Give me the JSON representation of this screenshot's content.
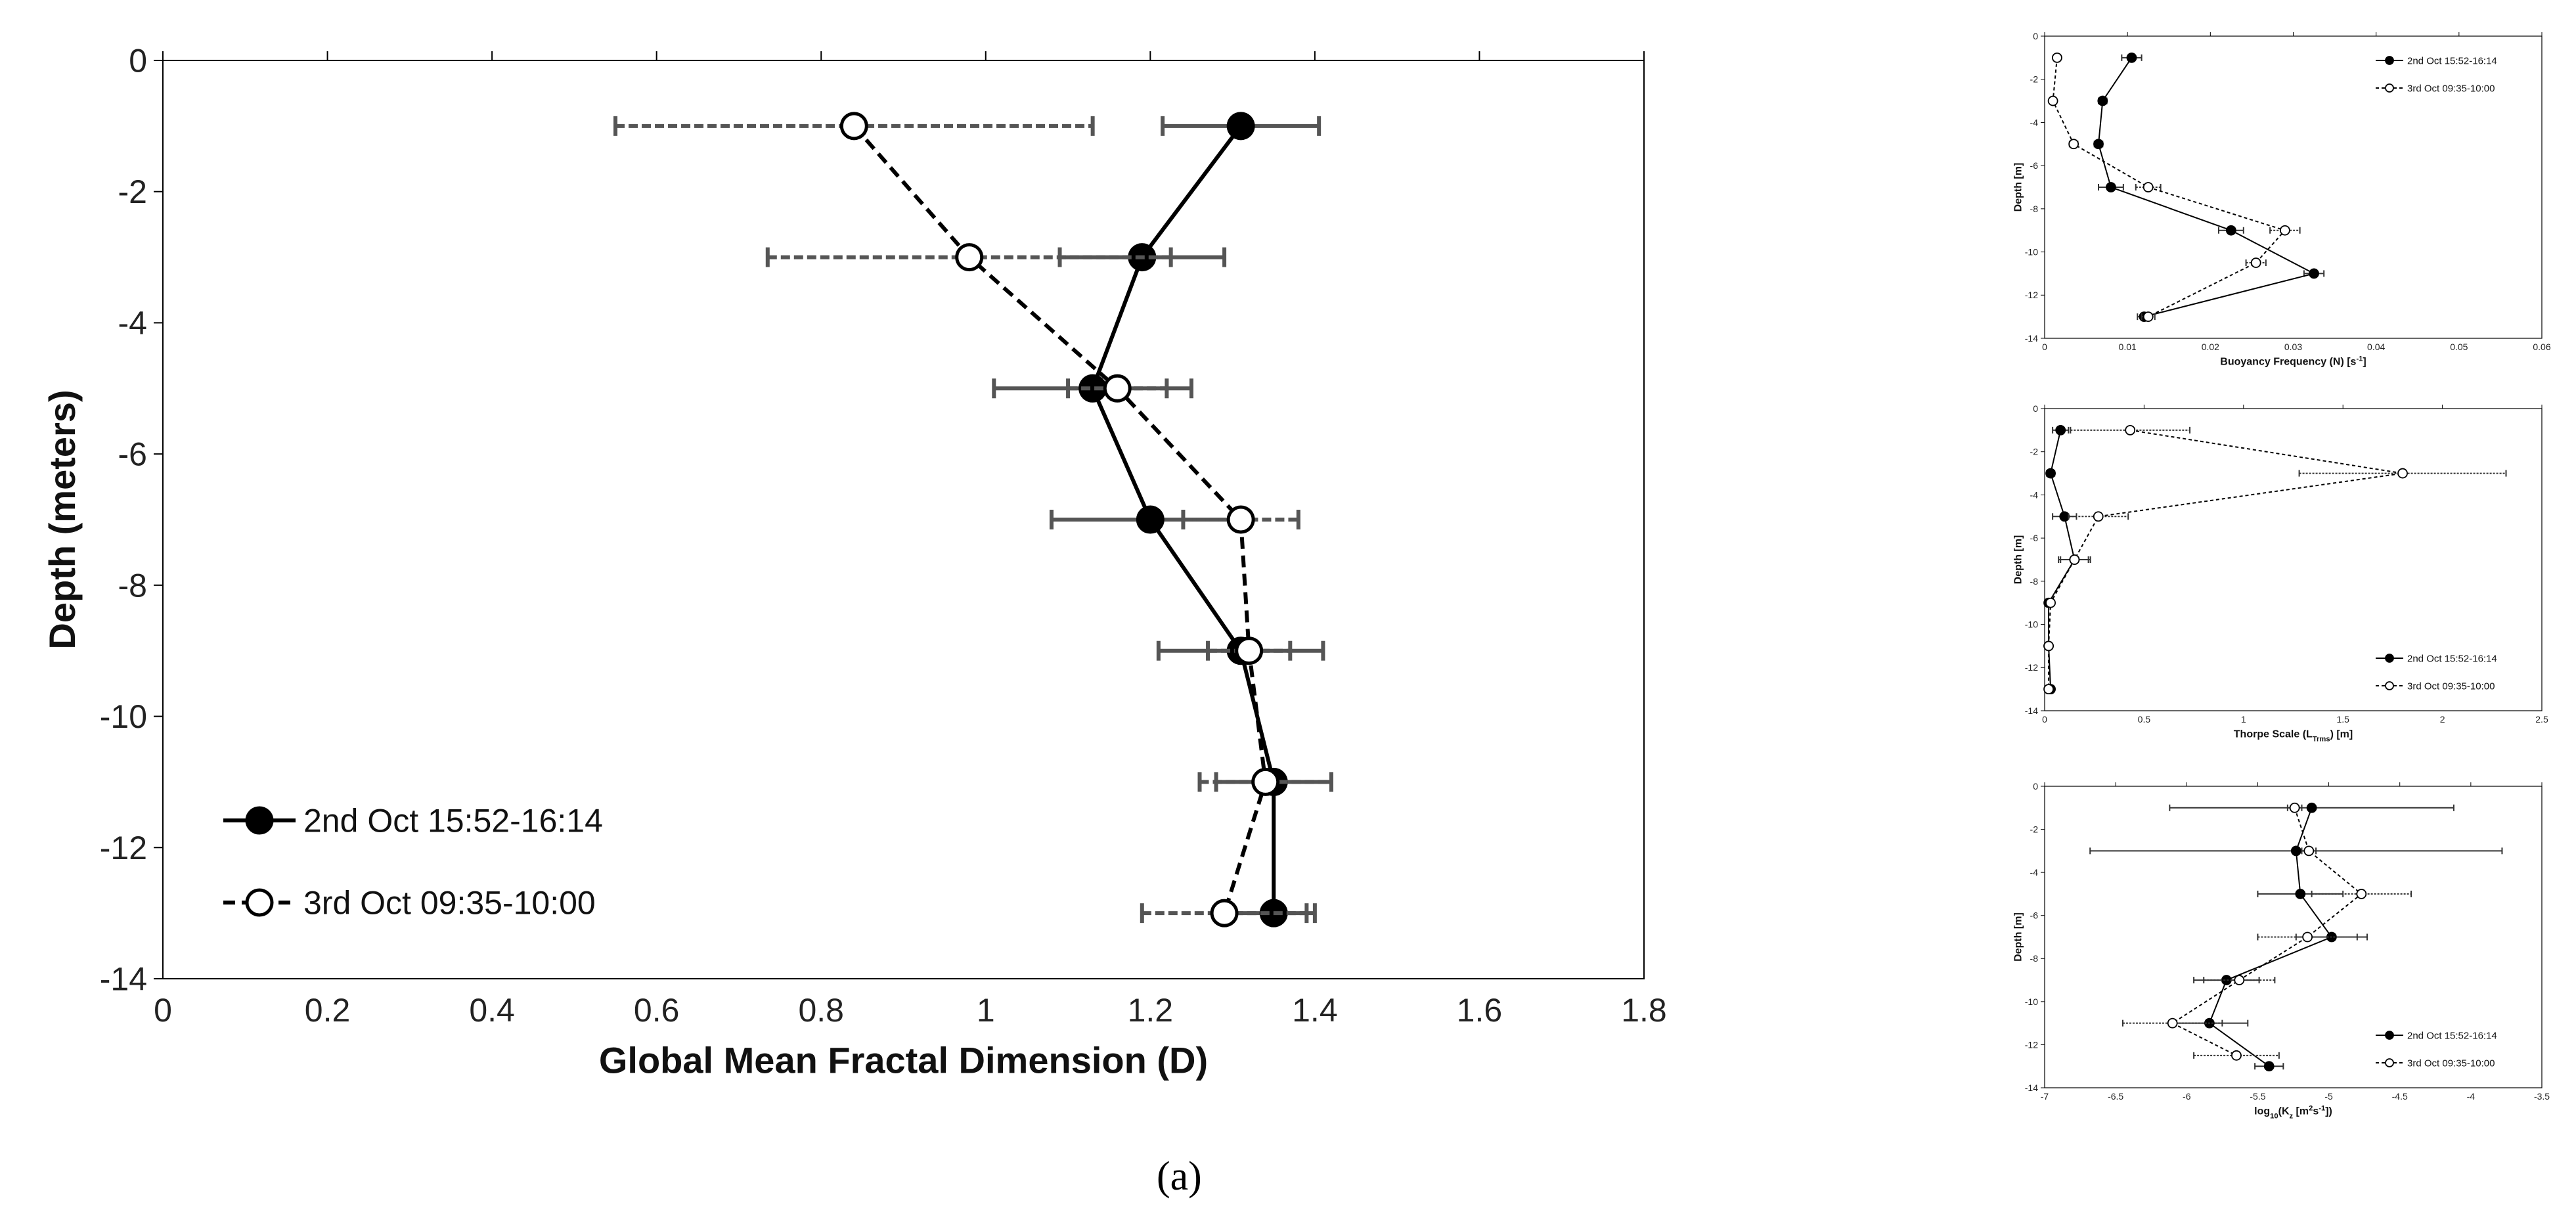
{
  "figure": {
    "caption": "(a)"
  },
  "chart_data": [
    {
      "id": "main",
      "type": "line",
      "xlabel": "Global Mean Fractal Dimension (D)",
      "ylabel": "Depth (meters)",
      "xlim": [
        0,
        1.8
      ],
      "ylim": [
        -14,
        0
      ],
      "xticks": [
        0,
        0.2,
        0.4,
        0.6,
        0.8,
        1,
        1.2,
        1.4,
        1.6,
        1.8
      ],
      "yticks": [
        0,
        -2,
        -4,
        -6,
        -8,
        -10,
        -12,
        -14
      ],
      "xtick_labels": [
        "0",
        "0.2",
        "0.4",
        "0.6",
        "0.8",
        "1",
        "1.2",
        "1.4",
        "1.6",
        "1.8"
      ],
      "ytick_labels": [
        "0",
        "-2",
        "-4",
        "-6",
        "-8",
        "-10",
        "-12",
        "-14"
      ],
      "grid": false,
      "legend_position": "bottom-left",
      "series": [
        {
          "name": "2nd Oct 15:52-16:14",
          "marker": "filled",
          "line": "solid",
          "points": [
            {
              "x": 1.31,
              "y": -1,
              "xerr": 0.095
            },
            {
              "x": 1.19,
              "y": -3,
              "xerr": 0.1
            },
            {
              "x": 1.13,
              "y": -5,
              "xerr": 0.12
            },
            {
              "x": 1.2,
              "y": -7,
              "xerr": 0.12
            },
            {
              "x": 1.31,
              "y": -9,
              "xerr": 0.1
            },
            {
              "x": 1.35,
              "y": -11,
              "xerr": 0.07
            },
            {
              "x": 1.35,
              "y": -13,
              "xerr": 0.05
            }
          ]
        },
        {
          "name": "3rd Oct 09:35-10:00",
          "marker": "open",
          "line": "dashed",
          "points": [
            {
              "x": 0.84,
              "y": -1,
              "xerr": 0.29
            },
            {
              "x": 0.98,
              "y": -3,
              "xerr": 0.245
            },
            {
              "x": 1.16,
              "y": -5,
              "xerr": 0.06
            },
            {
              "x": 1.31,
              "y": -7,
              "xerr": 0.07
            },
            {
              "x": 1.32,
              "y": -9,
              "xerr": 0.05
            },
            {
              "x": 1.34,
              "y": -11,
              "xerr": 0.08
            },
            {
              "x": 1.29,
              "y": -13,
              "xerr": 0.1
            }
          ]
        }
      ]
    },
    {
      "id": "buoyancy",
      "type": "line",
      "xlabel": "Buoyancy Frequency (N) [s",
      "xlabel_sup": "-1",
      "xlabel_tail": "]",
      "ylabel": "Depth [m]",
      "xlim": [
        0,
        0.06
      ],
      "ylim": [
        -14,
        0
      ],
      "xticks": [
        0,
        0.01,
        0.02,
        0.03,
        0.04,
        0.05,
        0.06
      ],
      "yticks": [
        0,
        -2,
        -4,
        -6,
        -8,
        -10,
        -12,
        -14
      ],
      "xtick_labels": [
        "0",
        "0.01",
        "0.02",
        "0.03",
        "0.04",
        "0.05",
        "0.06"
      ],
      "ytick_labels": [
        "0",
        "-2",
        "-4",
        "-6",
        "-8",
        "-10",
        "-12",
        "-14"
      ],
      "grid": false,
      "legend_position": "top-right",
      "series": [
        {
          "name": "2nd Oct 15:52-16:14",
          "marker": "filled",
          "line": "solid",
          "points": [
            {
              "x": 0.0105,
              "y": -1,
              "xerr": 0.0012
            },
            {
              "x": 0.007,
              "y": -3,
              "xerr": 0.0005
            },
            {
              "x": 0.0065,
              "y": -5,
              "xerr": 0.0005
            },
            {
              "x": 0.008,
              "y": -7,
              "xerr": 0.0015
            },
            {
              "x": 0.0225,
              "y": -9,
              "xerr": 0.0015
            },
            {
              "x": 0.0325,
              "y": -11,
              "xerr": 0.0012
            },
            {
              "x": 0.012,
              "y": -13,
              "xerr": 0.0008
            }
          ]
        },
        {
          "name": "3rd Oct 09:35-10:00",
          "marker": "open",
          "line": "dashed",
          "points": [
            {
              "x": 0.0015,
              "y": -1,
              "xerr": 0.0002
            },
            {
              "x": 0.001,
              "y": -3,
              "xerr": 0.0002
            },
            {
              "x": 0.0035,
              "y": -5,
              "xerr": 0.0005
            },
            {
              "x": 0.0125,
              "y": -7,
              "xerr": 0.0015
            },
            {
              "x": 0.029,
              "y": -9,
              "xerr": 0.0018
            },
            {
              "x": 0.0255,
              "y": -10.5,
              "xerr": 0.0012
            },
            {
              "x": 0.0125,
              "y": -13,
              "xerr": 0.0008
            }
          ]
        }
      ]
    },
    {
      "id": "thorpe",
      "type": "line",
      "xlabel": "Thorpe Scale (L",
      "xlabel_sub": "Trms",
      "xlabel_tail": ") [m]",
      "ylabel": "Depth [m]",
      "xlim": [
        0,
        2.5
      ],
      "ylim": [
        -14,
        0
      ],
      "xticks": [
        0,
        0.5,
        1,
        1.5,
        2,
        2.5
      ],
      "yticks": [
        0,
        -2,
        -4,
        -6,
        -8,
        -10,
        -12,
        -14
      ],
      "xtick_labels": [
        "0",
        "0.5",
        "1",
        "1.5",
        "2",
        "2.5"
      ],
      "ytick_labels": [
        "0",
        "-2",
        "-4",
        "-6",
        "-8",
        "-10",
        "-12",
        "-14"
      ],
      "grid": false,
      "legend_position": "bottom-right",
      "series": [
        {
          "name": "2nd Oct 15:52-16:14",
          "marker": "filled",
          "line": "solid",
          "points": [
            {
              "x": 0.08,
              "y": -1,
              "xerr": 0.04
            },
            {
              "x": 0.03,
              "y": -3,
              "xerr": 0.02
            },
            {
              "x": 0.1,
              "y": -5,
              "xerr": 0.06
            },
            {
              "x": 0.15,
              "y": -7,
              "xerr": 0.07
            },
            {
              "x": 0.02,
              "y": -9,
              "xerr": 0.01
            },
            {
              "x": 0.02,
              "y": -11,
              "xerr": 0.01
            },
            {
              "x": 0.03,
              "y": -13,
              "xerr": 0.01
            }
          ]
        },
        {
          "name": "3rd Oct 09:35-10:00",
          "marker": "open",
          "line": "dashed",
          "points": [
            {
              "x": 0.43,
              "y": -1,
              "xerr": 0.3
            },
            {
              "x": 1.8,
              "y": -3,
              "xerr": 0.52
            },
            {
              "x": 0.27,
              "y": -5,
              "xerr": 0.15
            },
            {
              "x": 0.15,
              "y": -7,
              "xerr": 0.08
            },
            {
              "x": 0.03,
              "y": -9,
              "xerr": 0.01
            },
            {
              "x": 0.02,
              "y": -11,
              "xerr": 0.01
            },
            {
              "x": 0.02,
              "y": -13,
              "xerr": 0.01
            }
          ]
        }
      ]
    },
    {
      "id": "kz",
      "type": "line",
      "xlabel": "log",
      "xlabel_sub": "10",
      "xlabel_mid": "(K",
      "xlabel_sub2": "z",
      "xlabel_tail": " [m",
      "xlabel_sup": "2",
      "xlabel_tail2": "s",
      "xlabel_sup2": "-1",
      "xlabel_tail3": "])",
      "ylabel": "Depth [m]",
      "xlim": [
        -7,
        -3.5
      ],
      "ylim": [
        -14,
        0
      ],
      "xticks": [
        -7,
        -6.5,
        -6,
        -5.5,
        -5,
        -4.5,
        -4,
        -3.5
      ],
      "yticks": [
        0,
        -2,
        -4,
        -6,
        -8,
        -10,
        -12,
        -14
      ],
      "xtick_labels": [
        "-7",
        "-6.5",
        "-6",
        "-5.5",
        "-5",
        "-4.5",
        "-4",
        "-3.5"
      ],
      "ytick_labels": [
        "0",
        "-2",
        "-4",
        "-6",
        "-8",
        "-10",
        "-12",
        "-14"
      ],
      "grid": false,
      "legend_position": "bottom-right",
      "series": [
        {
          "name": "2nd Oct 15:52-16:14",
          "marker": "filled",
          "line": "solid",
          "points": [
            {
              "x": -5.12,
              "y": -1,
              "xerr": 1.0
            },
            {
              "x": -5.23,
              "y": -3,
              "xerr": 1.45
            },
            {
              "x": -5.2,
              "y": -5,
              "xerr": 0.3
            },
            {
              "x": -4.98,
              "y": -7,
              "xerr": 0.25
            },
            {
              "x": -5.72,
              "y": -9,
              "xerr": 0.23
            },
            {
              "x": -5.84,
              "y": -11,
              "xerr": 0.27
            },
            {
              "x": -5.42,
              "y": -13,
              "xerr": 0.1
            }
          ]
        },
        {
          "name": "3rd Oct 09:35-10:00",
          "marker": "open",
          "line": "dashed",
          "points": [
            {
              "x": -5.24,
              "y": -1,
              "xerr": 0.05
            },
            {
              "x": -5.14,
              "y": -3,
              "xerr": 0.05
            },
            {
              "x": -4.77,
              "y": -5,
              "xerr": 0.35
            },
            {
              "x": -5.15,
              "y": -7,
              "xerr": 0.35
            },
            {
              "x": -5.63,
              "y": -9,
              "xerr": 0.25
            },
            {
              "x": -6.1,
              "y": -11,
              "xerr": 0.35
            },
            {
              "x": -5.65,
              "y": -12.5,
              "xerr": 0.3
            }
          ]
        }
      ]
    }
  ]
}
